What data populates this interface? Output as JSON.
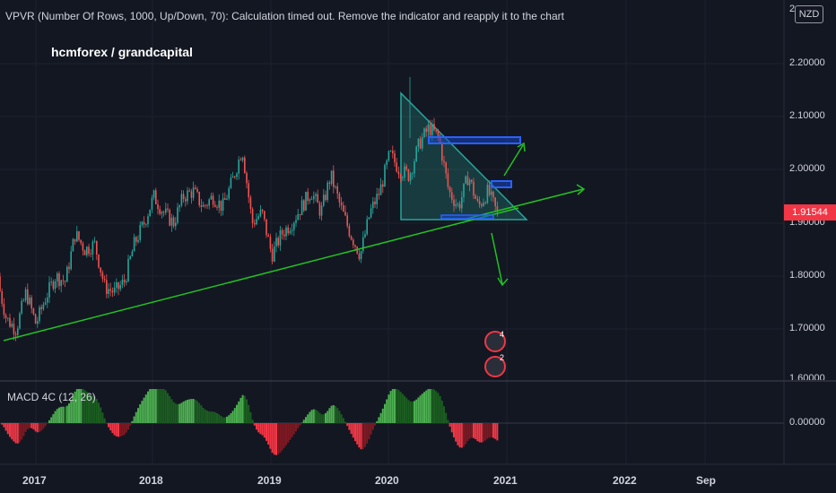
{
  "header": {
    "indicator_message": "VPVR (Number Of Rows, 1000, Up/Down, 70): Calculation timed out. Remove the indicator and reapply it to the chart",
    "author": "hcmforex / grandcapital",
    "currency": "NZD"
  },
  "price_axis": {
    "ticks": [
      "2.20000",
      "2.10000",
      "2.00000",
      "1.90000",
      "1.80000",
      "1.70000",
      "1.60000"
    ],
    "top_partial": "2",
    "current_price": "1.91544",
    "current_price_color": "#f23645"
  },
  "macd_pane": {
    "label": "MACD 4C (12, 26)",
    "zero_tick": "0.00000"
  },
  "time_axis": {
    "ticks": [
      "2017",
      "2018",
      "2019",
      "2020",
      "2021",
      "2022",
      "Sep"
    ]
  },
  "events": [
    {
      "icon": "uk-flag-icon",
      "count": "4"
    },
    {
      "icon": "globe-icon",
      "count": "2"
    }
  ],
  "colors": {
    "background": "#131722",
    "up_candle": "#26a69a",
    "down_candle": "#ef5350",
    "trendline": "#23c123",
    "triangle_fill": "#26a69a",
    "zone": "#2962ff",
    "macd_up": "#4caf50",
    "macd_down": "#f23645"
  },
  "chart_data": {
    "type": "candlestick",
    "title": "",
    "price_range": [
      1.6,
      2.2
    ],
    "ohlc_close_path": [
      [
        "2016-09",
        1.8
      ],
      [
        "2016-10",
        1.72
      ],
      [
        "2016-11",
        1.7
      ],
      [
        "2016-12",
        1.77
      ],
      [
        "2017-01",
        1.71
      ],
      [
        "2017-02",
        1.76
      ],
      [
        "2017-03",
        1.8
      ],
      [
        "2017-04",
        1.79
      ],
      [
        "2017-05",
        1.88
      ],
      [
        "2017-06",
        1.85
      ],
      [
        "2017-07",
        1.86
      ],
      [
        "2017-08",
        1.78
      ],
      [
        "2017-09",
        1.77
      ],
      [
        "2017-10",
        1.79
      ],
      [
        "2017-11",
        1.86
      ],
      [
        "2017-12",
        1.9
      ],
      [
        "2018-01",
        1.95
      ],
      [
        "2018-02",
        1.92
      ],
      [
        "2018-03",
        1.9
      ],
      [
        "2018-04",
        1.95
      ],
      [
        "2018-05",
        1.96
      ],
      [
        "2018-06",
        1.93
      ],
      [
        "2018-07",
        1.95
      ],
      [
        "2018-08",
        1.93
      ],
      [
        "2018-09",
        1.98
      ],
      [
        "2018-10",
        2.04
      ],
      [
        "2018-11",
        1.9
      ],
      [
        "2018-12",
        1.92
      ],
      [
        "2019-01",
        1.84
      ],
      [
        "2019-02",
        1.88
      ],
      [
        "2019-03",
        1.9
      ],
      [
        "2019-04",
        1.93
      ],
      [
        "2019-05",
        1.96
      ],
      [
        "2019-06",
        1.92
      ],
      [
        "2019-07",
        1.99
      ],
      [
        "2019-08",
        1.93
      ],
      [
        "2019-09",
        1.88
      ],
      [
        "2019-10",
        1.84
      ],
      [
        "2019-11",
        1.92
      ],
      [
        "2019-12",
        1.96
      ],
      [
        "2020-01",
        2.03
      ],
      [
        "2020-02",
        2.0
      ],
      [
        "2020-03",
        1.99
      ],
      [
        "2020-04",
        2.05
      ],
      [
        "2020-05",
        2.08
      ],
      [
        "2020-06",
        2.06
      ],
      [
        "2020-07",
        1.96
      ],
      [
        "2020-08",
        1.93
      ],
      [
        "2020-09",
        1.99
      ],
      [
        "2020-10",
        1.93
      ],
      [
        "2020-11",
        1.96
      ],
      [
        "2020-12",
        1.915
      ]
    ],
    "drawings": {
      "ascending_trendline": [
        [
          "2016-09",
          1.67
        ],
        [
          "2021-07",
          1.96
        ]
      ],
      "descending_triangle": {
        "apex_top": [
          "2020-03",
          2.14
        ],
        "base_level": 1.9,
        "base_range": [
          "2020-03",
          "2021-02"
        ]
      },
      "supply_zone": {
        "from": "2020-04",
        "to": "2021-01",
        "low": 2.045,
        "high": 2.055
      },
      "small_zone": {
        "from": "2020-12",
        "to": "2021-01",
        "low": 1.965,
        "high": 1.975
      },
      "support_zone": {
        "from": "2020-08",
        "to": "2020-12",
        "low": 1.9,
        "high": 1.905
      },
      "arrows": [
        {
          "from": [
            "2021-01",
            1.985
          ],
          "to": [
            "2021-02",
            2.04
          ]
        },
        {
          "from": [
            "2020-12",
            1.885
          ],
          "to": [
            "2021-01",
            1.815
          ]
        }
      ]
    },
    "macd_histogram_zero": 0.0
  }
}
